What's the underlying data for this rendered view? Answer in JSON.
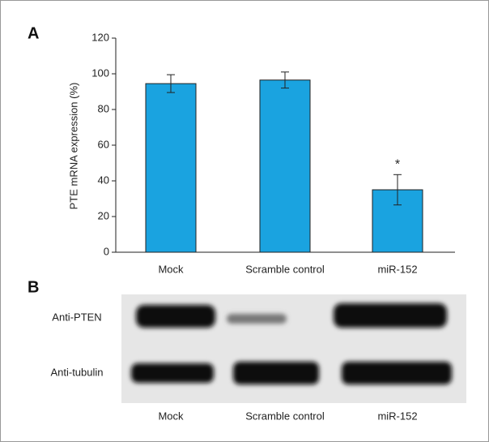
{
  "chart_data": {
    "type": "bar",
    "panel_label": "A",
    "y_label": "PTE mRNA expression (%)",
    "categories": [
      "Mock",
      "Scramble control",
      "miR-152"
    ],
    "values": [
      94.5,
      96.5,
      35
    ],
    "errors": [
      5,
      4.5,
      8.5
    ],
    "bar_annotations": [
      null,
      null,
      "*"
    ],
    "color": "#1aa3e0",
    "ylim": [
      0,
      120
    ],
    "yticks": [
      0,
      20,
      40,
      60,
      80,
      100,
      120
    ]
  },
  "blot": {
    "panel_label": "B",
    "rows": [
      "Anti-PTEN",
      "Anti-tubulin"
    ],
    "lanes": [
      "Mock",
      "Scramble control",
      "miR-152"
    ]
  }
}
